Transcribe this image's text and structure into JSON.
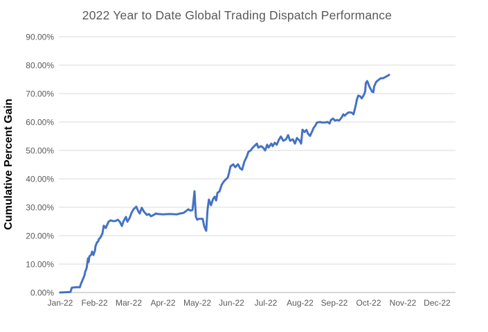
{
  "chart_data": {
    "type": "line",
    "title": "2022 Year to Date Global Trading Dispatch Performance",
    "xlabel": "",
    "ylabel": "Cumulative Percent Gain",
    "x_tick_labels": [
      "Jan-22",
      "Feb-22",
      "Mar-22",
      "Apr-22",
      "May-22",
      "Jun-22",
      "Jul-22",
      "Aug-22",
      "Sep-22",
      "Oct-22",
      "Nov-22",
      "Dec-22"
    ],
    "y_tick_labels": [
      "0.00%",
      "10.00%",
      "20.00%",
      "30.00%",
      "40.00%",
      "50.00%",
      "60.00%",
      "70.00%",
      "80.00%",
      "90.00%"
    ],
    "y_tick_values": [
      0,
      10,
      20,
      30,
      40,
      50,
      60,
      70,
      80,
      90
    ],
    "ylim": [
      0,
      90
    ],
    "xlim_months": [
      0,
      11.55
    ],
    "grid": "horizontal-only",
    "legend": "none",
    "line_color": "#4472C4",
    "grid_color": "#D9D9D9",
    "axis_color": "#BFBFBF",
    "title_color": "#595959",
    "tick_color": "#595959",
    "series": [
      {
        "name": "Cumulative Percent Gain",
        "x_unit": "months-since-Jan-2022-tick",
        "y_unit": "percent",
        "final_value_pct": 76.6,
        "points": [
          [
            0.0,
            0.0
          ],
          [
            0.16,
            0.1
          ],
          [
            0.3,
            0.2
          ],
          [
            0.34,
            1.7
          ],
          [
            0.42,
            1.8
          ],
          [
            0.53,
            1.9
          ],
          [
            0.57,
            1.8
          ],
          [
            0.61,
            3.2
          ],
          [
            0.67,
            4.9
          ],
          [
            0.71,
            6.1
          ],
          [
            0.73,
            7.3
          ],
          [
            0.77,
            8.5
          ],
          [
            0.81,
            12.0
          ],
          [
            0.83,
            10.7
          ],
          [
            0.85,
            12.7
          ],
          [
            0.91,
            13.4
          ],
          [
            0.93,
            14.4
          ],
          [
            0.97,
            13.2
          ],
          [
            1.01,
            14.6
          ],
          [
            1.03,
            16.3
          ],
          [
            1.07,
            17.6
          ],
          [
            1.11,
            18.0
          ],
          [
            1.13,
            18.8
          ],
          [
            1.17,
            19.3
          ],
          [
            1.23,
            20.7
          ],
          [
            1.27,
            23.5
          ],
          [
            1.33,
            22.7
          ],
          [
            1.41,
            24.9
          ],
          [
            1.47,
            25.4
          ],
          [
            1.55,
            25.1
          ],
          [
            1.62,
            25.2
          ],
          [
            1.68,
            25.6
          ],
          [
            1.74,
            24.9
          ],
          [
            1.8,
            23.4
          ],
          [
            1.84,
            24.9
          ],
          [
            1.92,
            26.6
          ],
          [
            1.96,
            24.9
          ],
          [
            2.02,
            26.1
          ],
          [
            2.08,
            28.0
          ],
          [
            2.14,
            29.3
          ],
          [
            2.22,
            30.2
          ],
          [
            2.28,
            28.5
          ],
          [
            2.32,
            27.8
          ],
          [
            2.38,
            29.8
          ],
          [
            2.44,
            28.5
          ],
          [
            2.53,
            27.3
          ],
          [
            2.59,
            27.6
          ],
          [
            2.65,
            26.8
          ],
          [
            2.73,
            27.3
          ],
          [
            2.79,
            27.8
          ],
          [
            2.85,
            27.6
          ],
          [
            3.0,
            27.5
          ],
          [
            3.2,
            27.6
          ],
          [
            3.4,
            27.5
          ],
          [
            3.5,
            27.8
          ],
          [
            3.6,
            28.0
          ],
          [
            3.74,
            29.3
          ],
          [
            3.8,
            28.8
          ],
          [
            3.86,
            29.0
          ],
          [
            3.92,
            35.6
          ],
          [
            3.96,
            26.6
          ],
          [
            4.0,
            25.6
          ],
          [
            4.04,
            25.9
          ],
          [
            4.16,
            25.9
          ],
          [
            4.2,
            23.4
          ],
          [
            4.24,
            22.2
          ],
          [
            4.26,
            21.7
          ],
          [
            4.3,
            29.3
          ],
          [
            4.34,
            32.7
          ],
          [
            4.4,
            30.7
          ],
          [
            4.46,
            32.9
          ],
          [
            4.51,
            33.7
          ],
          [
            4.55,
            32.4
          ],
          [
            4.59,
            35.1
          ],
          [
            4.65,
            35.6
          ],
          [
            4.71,
            37.8
          ],
          [
            4.77,
            39.0
          ],
          [
            4.85,
            40.0
          ],
          [
            4.89,
            40.5
          ],
          [
            4.93,
            42.2
          ],
          [
            4.97,
            44.4
          ],
          [
            5.05,
            45.1
          ],
          [
            5.11,
            44.1
          ],
          [
            5.19,
            45.1
          ],
          [
            5.25,
            43.7
          ],
          [
            5.31,
            43.2
          ],
          [
            5.37,
            45.9
          ],
          [
            5.45,
            48.0
          ],
          [
            5.49,
            49.5
          ],
          [
            5.56,
            50.0
          ],
          [
            5.62,
            51.0
          ],
          [
            5.68,
            51.7
          ],
          [
            5.74,
            52.4
          ],
          [
            5.78,
            51.0
          ],
          [
            5.86,
            51.5
          ],
          [
            5.92,
            51.0
          ],
          [
            5.98,
            50.0
          ],
          [
            6.04,
            52.0
          ],
          [
            6.08,
            51.0
          ],
          [
            6.16,
            52.4
          ],
          [
            6.2,
            51.5
          ],
          [
            6.26,
            52.7
          ],
          [
            6.32,
            52.0
          ],
          [
            6.38,
            53.7
          ],
          [
            6.44,
            54.9
          ],
          [
            6.51,
            53.4
          ],
          [
            6.59,
            53.9
          ],
          [
            6.65,
            55.4
          ],
          [
            6.71,
            53.4
          ],
          [
            6.79,
            53.9
          ],
          [
            6.85,
            52.4
          ],
          [
            6.91,
            54.4
          ],
          [
            6.99,
            53.4
          ],
          [
            7.03,
            52.4
          ],
          [
            7.07,
            57.3
          ],
          [
            7.13,
            56.5
          ],
          [
            7.19,
            57.2
          ],
          [
            7.23,
            55.9
          ],
          [
            7.29,
            55.1
          ],
          [
            7.35,
            56.6
          ],
          [
            7.39,
            57.8
          ],
          [
            7.45,
            58.8
          ],
          [
            7.49,
            59.8
          ],
          [
            7.58,
            60.0
          ],
          [
            7.64,
            59.8
          ],
          [
            7.72,
            59.8
          ],
          [
            7.8,
            60.0
          ],
          [
            7.86,
            59.5
          ],
          [
            7.9,
            60.7
          ],
          [
            7.96,
            61.2
          ],
          [
            8.02,
            60.5
          ],
          [
            8.08,
            60.7
          ],
          [
            8.14,
            60.5
          ],
          [
            8.22,
            61.7
          ],
          [
            8.26,
            62.7
          ],
          [
            8.3,
            62.2
          ],
          [
            8.36,
            62.9
          ],
          [
            8.42,
            63.4
          ],
          [
            8.46,
            63.4
          ],
          [
            8.52,
            63.2
          ],
          [
            8.56,
            62.7
          ],
          [
            8.62,
            65.6
          ],
          [
            8.66,
            68.0
          ],
          [
            8.7,
            69.3
          ],
          [
            8.76,
            69.0
          ],
          [
            8.8,
            68.3
          ],
          [
            8.86,
            69.5
          ],
          [
            8.9,
            70.7
          ],
          [
            8.92,
            73.7
          ],
          [
            8.96,
            74.4
          ],
          [
            9.0,
            73.2
          ],
          [
            9.04,
            72.0
          ],
          [
            9.1,
            70.7
          ],
          [
            9.14,
            70.5
          ],
          [
            9.16,
            72.4
          ],
          [
            9.22,
            74.1
          ],
          [
            9.3,
            74.9
          ],
          [
            9.36,
            75.4
          ],
          [
            9.42,
            75.4
          ],
          [
            9.5,
            75.9
          ],
          [
            9.56,
            76.3
          ],
          [
            9.6,
            76.6
          ]
        ]
      }
    ]
  }
}
